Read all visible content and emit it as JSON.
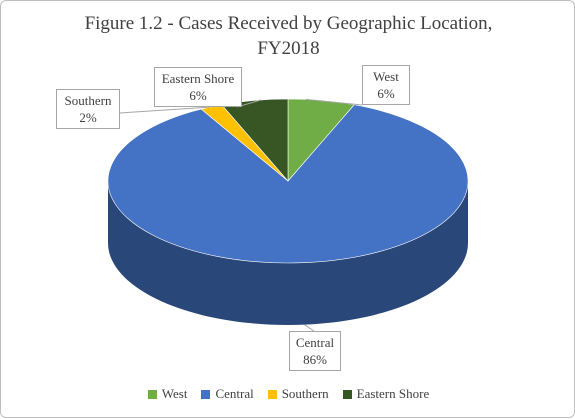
{
  "chart_data": {
    "type": "pie",
    "title": "Figure 1.2 - Cases Received by Geographic Location,",
    "title_line2": "FY2018",
    "categories": [
      "West",
      "Central",
      "Southern",
      "Eastern Shore"
    ],
    "values": [
      6,
      86,
      2,
      6
    ],
    "value_labels": [
      "6%",
      "86%",
      "2%",
      "6%"
    ],
    "colors": [
      "#70ad47",
      "#4472c4",
      "#ffc000",
      "#375623"
    ],
    "style": "3d",
    "legend_position": "bottom"
  }
}
